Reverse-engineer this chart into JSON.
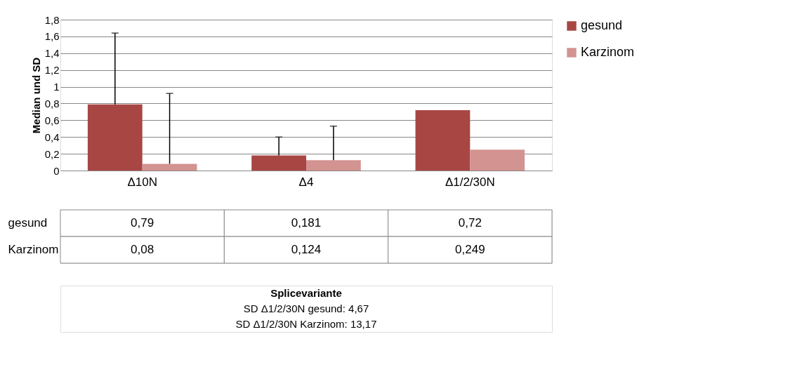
{
  "chart_data": {
    "type": "bar",
    "ylabel": "Median und SD",
    "categories": [
      "Δ10N",
      "Δ4",
      "Δ1/2/30N"
    ],
    "series": [
      {
        "name": "gesund",
        "color": "#a84644",
        "values": [
          0.79,
          0.181,
          0.72
        ],
        "value_labels": [
          "0,79",
          "0,181",
          "0,72"
        ],
        "errors": [
          [
            0.79,
            1.64
          ],
          [
            0.181,
            0.4
          ],
          null
        ]
      },
      {
        "name": "Karzinom",
        "color": "#d39391",
        "values": [
          0.08,
          0.124,
          0.249
        ],
        "value_labels": [
          "0,08",
          "0,124",
          "0,249"
        ],
        "errors": [
          [
            0.08,
            0.92
          ],
          [
            0.124,
            0.53
          ],
          null
        ]
      }
    ],
    "ylim": [
      0,
      1.8
    ],
    "yticks": [
      0,
      {
        "value": 0.2,
        "label": "0,2"
      },
      {
        "value": 0.4,
        "label": "0,4"
      },
      {
        "value": 0.6,
        "label": "0,6"
      },
      {
        "value": 0.8,
        "label": "0,8"
      },
      1,
      {
        "value": 1.2,
        "label": "1,2"
      },
      {
        "value": 1.4,
        "label": "1,4"
      },
      {
        "value": 1.6,
        "label": "1,6"
      },
      {
        "value": 1.8,
        "label": "1,8"
      }
    ],
    "grid": "y",
    "legend": "right",
    "annotations": [
      "Splicevariante",
      "SD Δ1/2/30N gesund: 4,67",
      "SD Δ1/2/30N Karzinom: 13,17"
    ]
  }
}
